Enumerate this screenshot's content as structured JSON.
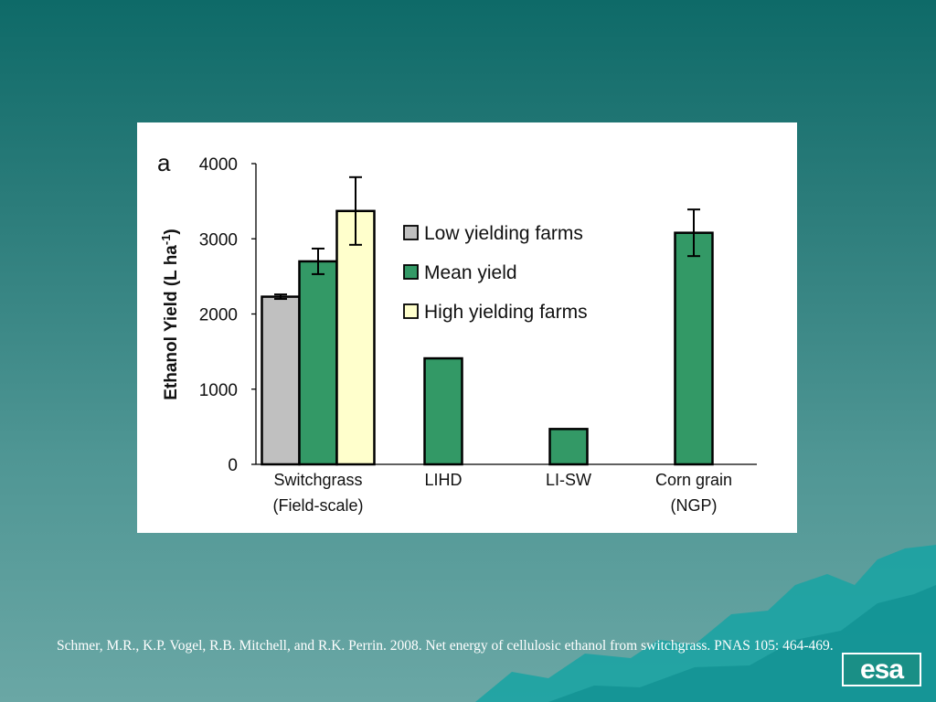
{
  "slide": {
    "citation": "Schmer, M.R., K.P. Vogel, R.B. Mitchell, and R.K. Perrin. 2008. Net energy of cellulosic ethanol from switchgrass.  PNAS 105: 464-469.",
    "logo_text": "esa"
  },
  "colors": {
    "low": "#c0c0c0",
    "mean": "#339966",
    "high": "#ffffcc"
  },
  "chart_data": {
    "type": "bar",
    "panel_label": "a",
    "ylabel": "Ethanol Yield (L ha",
    "ylabel_sup": "-1",
    "ylabel_close": ")",
    "ylim": [
      0,
      4000
    ],
    "yticks": [
      0,
      1000,
      2000,
      3000,
      4000
    ],
    "legend": [
      "Low yielding farms",
      "Mean yield",
      "High yielding farms"
    ],
    "legend_position": "top-center",
    "categories": [
      {
        "line1": "Switchgrass",
        "line2": "(Field-scale)"
      },
      {
        "line1": "LIHD",
        "line2": ""
      },
      {
        "line1": "LI-SW",
        "line2": ""
      },
      {
        "line1": "Corn grain",
        "line2": "(NGP)"
      }
    ],
    "bars": [
      {
        "category": 0,
        "series": "low",
        "value": 2230,
        "err": 30
      },
      {
        "category": 0,
        "series": "mean",
        "value": 2700,
        "err": 170
      },
      {
        "category": 0,
        "series": "high",
        "value": 3370,
        "err": 450
      },
      {
        "category": 1,
        "series": "mean",
        "value": 1410,
        "err": 0
      },
      {
        "category": 2,
        "series": "mean",
        "value": 470,
        "err": 0
      },
      {
        "category": 3,
        "series": "mean",
        "value": 3080,
        "err": 310
      }
    ]
  }
}
